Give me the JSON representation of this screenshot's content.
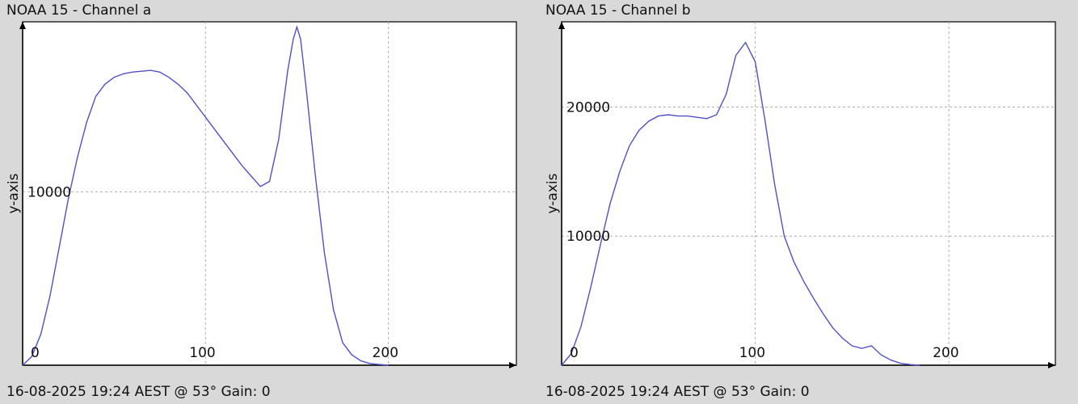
{
  "chart_data": [
    {
      "type": "line",
      "title": "NOAA 15 - Channel a",
      "footer": "16-08-2025 19:24 AEST @ 53° Gain: 0",
      "ylabel": "y-axis",
      "xlabel": "",
      "xlim": [
        0,
        270
      ],
      "ylim": [
        0,
        19800
      ],
      "xticks": [
        0,
        100,
        200
      ],
      "yticks": [
        10000
      ],
      "grid": true,
      "line_color": "#5050cc",
      "x": [
        0,
        5,
        10,
        15,
        20,
        25,
        30,
        35,
        40,
        45,
        50,
        55,
        60,
        65,
        70,
        75,
        80,
        85,
        90,
        95,
        100,
        105,
        110,
        115,
        120,
        125,
        130,
        135,
        140,
        145,
        148,
        150,
        152,
        155,
        160,
        165,
        170,
        175,
        180,
        185,
        190,
        195,
        200
      ],
      "y": [
        0,
        500,
        1800,
        4000,
        6800,
        9600,
        12000,
        14000,
        15500,
        16200,
        16600,
        16800,
        16900,
        16950,
        17000,
        16900,
        16600,
        16200,
        15700,
        15000,
        14300,
        13600,
        12900,
        12200,
        11500,
        10900,
        10300,
        10600,
        13000,
        17000,
        18800,
        19500,
        18800,
        16000,
        11000,
        6500,
        3200,
        1300,
        600,
        250,
        100,
        40,
        0
      ]
    },
    {
      "type": "line",
      "title": "NOAA 15 - Channel b",
      "footer": "16-08-2025 19:24 AEST @ 53° Gain: 0",
      "ylabel": "y-axis",
      "xlabel": "",
      "xlim": [
        0,
        255
      ],
      "ylim": [
        0,
        26600
      ],
      "xticks": [
        0,
        100,
        200
      ],
      "yticks": [
        10000,
        20000
      ],
      "grid": true,
      "line_color": "#5050cc",
      "x": [
        0,
        5,
        10,
        15,
        20,
        25,
        30,
        35,
        40,
        45,
        50,
        55,
        60,
        65,
        70,
        75,
        80,
        85,
        90,
        95,
        100,
        105,
        110,
        115,
        120,
        125,
        130,
        135,
        140,
        145,
        150,
        155,
        160,
        165,
        170,
        175,
        180,
        185
      ],
      "y": [
        0,
        900,
        3000,
        6000,
        9300,
        12500,
        15000,
        17000,
        18200,
        18900,
        19300,
        19400,
        19300,
        19300,
        19200,
        19100,
        19400,
        21000,
        24000,
        25000,
        23500,
        19000,
        14000,
        10000,
        8000,
        6500,
        5200,
        4000,
        2900,
        2100,
        1500,
        1300,
        1500,
        800,
        400,
        150,
        50,
        0
      ]
    }
  ]
}
